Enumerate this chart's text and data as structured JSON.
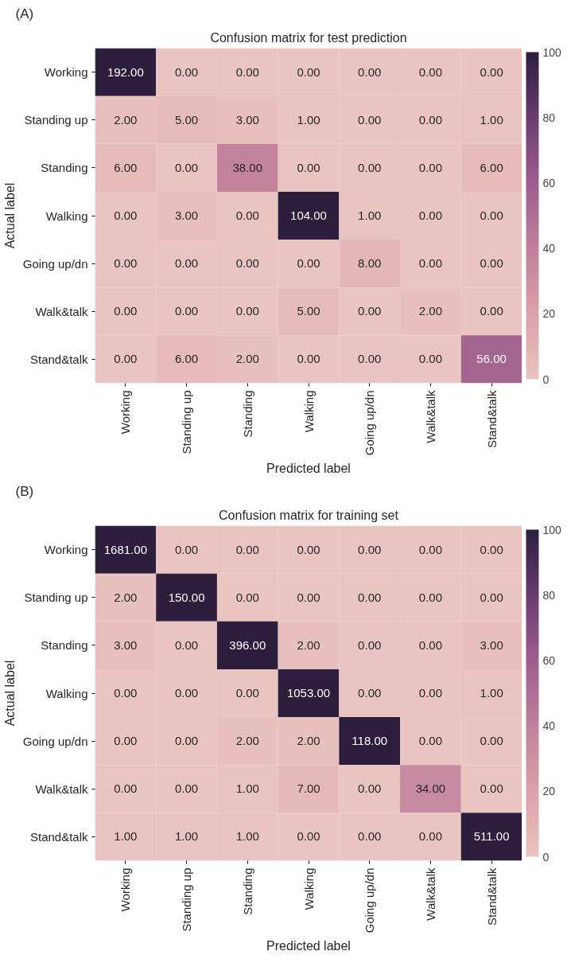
{
  "chart_data": [
    {
      "type": "heatmap",
      "title": "Confusion matrix for test prediction",
      "xlabel": "Predicted label",
      "ylabel": "Actual label",
      "annotations": [
        "(A)"
      ],
      "categories": [
        "Working",
        "Standing up",
        "Standing",
        "Walking",
        "Going up/dn",
        "Walk&talk",
        "Stand&talk"
      ],
      "y_categories": [
        "Working",
        "Standing up",
        "Standing",
        "Walking",
        "Going up/dn",
        "Walk&talk",
        "Stand&talk"
      ],
      "cells": [
        [
          192,
          0,
          0,
          0,
          0,
          0,
          0
        ],
        [
          2,
          5,
          3,
          1,
          0,
          0,
          1
        ],
        [
          6,
          0,
          38,
          0,
          0,
          0,
          6
        ],
        [
          0,
          3,
          0,
          104,
          1,
          0,
          0
        ],
        [
          0,
          0,
          0,
          0,
          8,
          0,
          0
        ],
        [
          0,
          0,
          0,
          5,
          0,
          2,
          0
        ],
        [
          0,
          6,
          2,
          0,
          0,
          0,
          56
        ]
      ],
      "cell_labels": [
        [
          "192.00",
          "0.00",
          "0.00",
          "0.00",
          "0.00",
          "0.00",
          "0.00"
        ],
        [
          "2.00",
          "5.00",
          "3.00",
          "1.00",
          "0.00",
          "0.00",
          "1.00"
        ],
        [
          "6.00",
          "0.00",
          "38.00",
          "0.00",
          "0.00",
          "0.00",
          "6.00"
        ],
        [
          "0.00",
          "3.00",
          "0.00",
          "104.00",
          "1.00",
          "0.00",
          "0.00"
        ],
        [
          "0.00",
          "0.00",
          "0.00",
          "0.00",
          "8.00",
          "0.00",
          "0.00"
        ],
        [
          "0.00",
          "0.00",
          "0.00",
          "5.00",
          "0.00",
          "2.00",
          "0.00"
        ],
        [
          "0.00",
          "6.00",
          "2.00",
          "0.00",
          "0.00",
          "0.00",
          "56.00"
        ]
      ],
      "clim": [
        0,
        100
      ],
      "cticks": [
        0,
        20,
        40,
        60,
        80,
        100
      ]
    },
    {
      "type": "heatmap",
      "title": "Confusion matrix for training set",
      "xlabel": "Predicted label",
      "ylabel": "Actual label",
      "annotations": [
        "(B)"
      ],
      "categories": [
        "Working",
        "Standing up",
        "Standing",
        "Walking",
        "Going up/dn",
        "Walk&talk",
        "Stand&talk"
      ],
      "y_categories": [
        "Working",
        "Standing up",
        "Standing",
        "Walking",
        "Going up/dn",
        "Walk&talk",
        "Stand&talk"
      ],
      "cells": [
        [
          1681,
          0,
          0,
          0,
          0,
          0,
          0
        ],
        [
          2,
          150,
          0,
          0,
          0,
          0,
          0
        ],
        [
          3,
          0,
          396,
          2,
          0,
          0,
          3
        ],
        [
          0,
          0,
          0,
          1053,
          0,
          0,
          1
        ],
        [
          0,
          0,
          2,
          2,
          118,
          0,
          0
        ],
        [
          0,
          0,
          1,
          7,
          0,
          34,
          0
        ],
        [
          1,
          1,
          1,
          0,
          0,
          0,
          511
        ]
      ],
      "cell_labels": [
        [
          "1681.00",
          "0.00",
          "0.00",
          "0.00",
          "0.00",
          "0.00",
          "0.00"
        ],
        [
          "2.00",
          "150.00",
          "0.00",
          "0.00",
          "0.00",
          "0.00",
          "0.00"
        ],
        [
          "3.00",
          "0.00",
          "396.00",
          "2.00",
          "0.00",
          "0.00",
          "3.00"
        ],
        [
          "0.00",
          "0.00",
          "0.00",
          "1053.00",
          "0.00",
          "0.00",
          "1.00"
        ],
        [
          "0.00",
          "0.00",
          "2.00",
          "2.00",
          "118.00",
          "0.00",
          "0.00"
        ],
        [
          "0.00",
          "0.00",
          "1.00",
          "7.00",
          "0.00",
          "34.00",
          "0.00"
        ],
        [
          "1.00",
          "1.00",
          "1.00",
          "0.00",
          "0.00",
          "0.00",
          "511.00"
        ]
      ],
      "clim": [
        0,
        100
      ],
      "cticks": [
        0,
        20,
        40,
        60,
        80,
        100
      ]
    }
  ]
}
